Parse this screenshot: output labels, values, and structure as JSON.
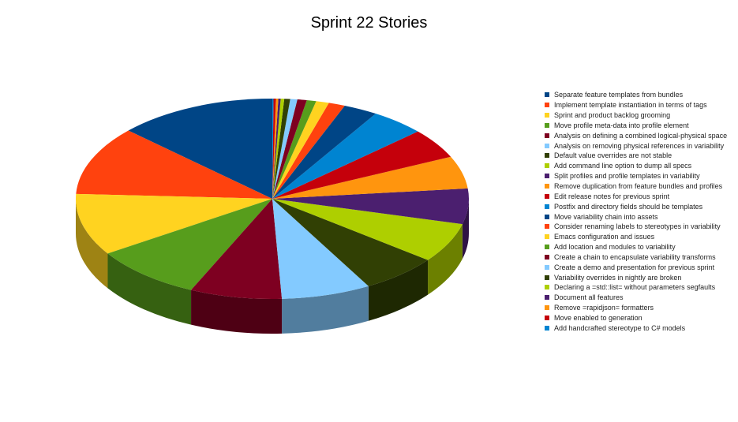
{
  "chart_data": {
    "type": "pie",
    "style": "3d",
    "title": "Sprint 22 Stories",
    "legend_position": "right",
    "series": [
      {
        "name": "Separate feature templates from bundles",
        "value": 13.5,
        "color": "#004586"
      },
      {
        "name": "Implement template instantiation in terms of tags",
        "value": 11.5,
        "color": "#ff420e"
      },
      {
        "name": "Sprint and product backlog grooming",
        "value": 10.3,
        "color": "#ffd320"
      },
      {
        "name": "Move profile meta-data into profile element",
        "value": 9.3,
        "color": "#579d1c"
      },
      {
        "name": "Analysis on defining a combined logical-physical space",
        "value": 7.8,
        "color": "#7e0021"
      },
      {
        "name": "Analysis on removing physical references in variability",
        "value": 7.6,
        "color": "#83caff"
      },
      {
        "name": "Default value overrides are not stable",
        "value": 6.6,
        "color": "#314004"
      },
      {
        "name": "Add command line option to dump all specs",
        "value": 6.6,
        "color": "#aecf00"
      },
      {
        "name": "Split profiles and profile templates in variability",
        "value": 5.9,
        "color": "#4b1f6f"
      },
      {
        "name": "Remove duplication from feature bundles and profiles",
        "value": 5.4,
        "color": "#ff950e"
      },
      {
        "name": "Edit release notes for previous sprint",
        "value": 5.0,
        "color": "#c5000b"
      },
      {
        "name": "Postfix and directory fields should be templates",
        "value": 4.6,
        "color": "#0084d1"
      },
      {
        "name": "Move variability chain into assets",
        "value": 2.9,
        "color": "#004586"
      },
      {
        "name": "Consider renaming labels to stereotypes in variability",
        "value": 1.4,
        "color": "#ff420e"
      },
      {
        "name": "Emacs configuration and issues",
        "value": 1.1,
        "color": "#ffd320"
      },
      {
        "name": "Add location and modules to variability",
        "value": 0.8,
        "color": "#579d1c"
      },
      {
        "name": "Create a chain to encapsulate variability transforms",
        "value": 0.8,
        "color": "#7e0021"
      },
      {
        "name": "Create a demo and presentation for previous sprint",
        "value": 0.6,
        "color": "#83caff"
      },
      {
        "name": "Variability overrides in nightly are broken",
        "value": 0.5,
        "color": "#314004"
      },
      {
        "name": "Declaring a =std::list= without parameters segfaults",
        "value": 0.3,
        "color": "#aecf00"
      },
      {
        "name": "Document all features",
        "value": 0.2,
        "color": "#4b1f6f"
      },
      {
        "name": "Remove =rapidjson= formatters",
        "value": 0.2,
        "color": "#ff950e"
      },
      {
        "name": "Move enabled to generation",
        "value": 0.2,
        "color": "#c5000b"
      },
      {
        "name": "Add handcrafted stereotype to C# models",
        "value": 0.1,
        "color": "#0084d1"
      }
    ]
  }
}
